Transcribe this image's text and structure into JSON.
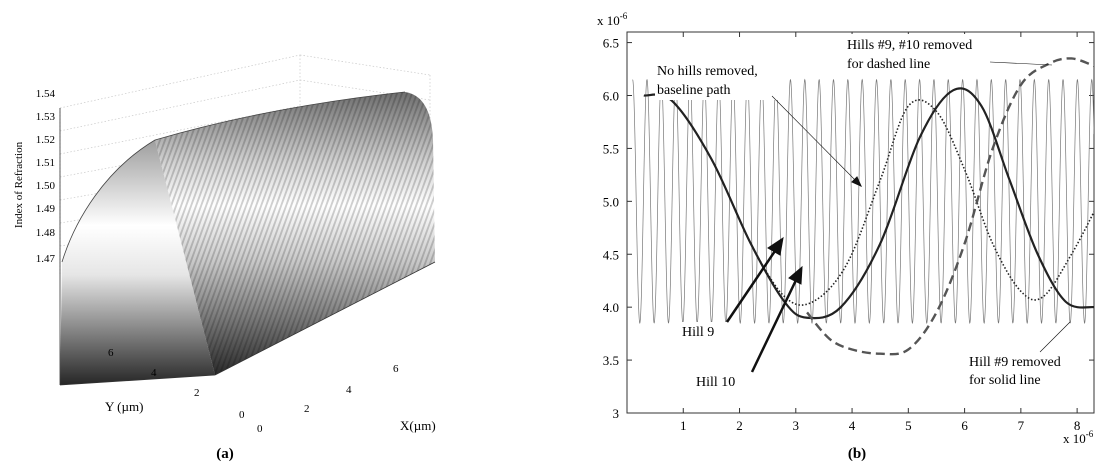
{
  "figure_a": {
    "panel_label": "(a)",
    "zlabel": "Index of Refraction",
    "ylabel": "Y (µm)",
    "xlabel": "X(µm)",
    "z_ticks": [
      "1.47",
      "1.48",
      "1.49",
      "1.50",
      "1.51",
      "1.52",
      "1.53",
      "1.54"
    ],
    "y_ticks": [
      "0",
      "2",
      "4",
      "6"
    ],
    "x_ticks": [
      "0",
      "2",
      "4",
      "6"
    ]
  },
  "figure_b": {
    "panel_label": "(b)",
    "y_multiplier": "x 10",
    "y_multiplier_exp": "-6",
    "x_multiplier": "x 10",
    "x_multiplier_exp": "-6",
    "annotations": {
      "no_hills_line1": "No hills removed,",
      "no_hills_line2": "baseline path",
      "hills_9_10_line1": "Hills #9, #10 removed",
      "hills_9_10_line2": "for dashed line",
      "hill9": "Hill 9",
      "hill10": "Hill 10",
      "hill9_removed_line1": "Hill #9 removed",
      "hill9_removed_line2": "for solid line"
    }
  },
  "chart_data": [
    {
      "type": "surface",
      "zlabel": "Index of Refraction",
      "xlabel": "X(µm)",
      "ylabel": "Y (µm)",
      "zlim": [
        1.47,
        1.54
      ],
      "xlim": [
        0,
        7
      ],
      "ylim": [
        0,
        7
      ],
      "z_ticks": [
        1.47,
        1.48,
        1.49,
        1.5,
        1.51,
        1.52,
        1.53,
        1.54
      ]
    },
    {
      "type": "line",
      "xlim": [
        0,
        8.3
      ],
      "ylim": [
        3,
        6.6
      ],
      "x_ticks": [
        1,
        2,
        3,
        4,
        5,
        6,
        7,
        8
      ],
      "y_ticks": [
        3,
        3.5,
        4,
        4.5,
        5,
        5.5,
        6,
        6.5
      ],
      "x_scale": "x 10^-6",
      "y_scale": "x 10^-6",
      "series": [
        {
          "style": "thin-oscillation",
          "x": [
            0.1,
            8.3
          ],
          "period": 0.255,
          "min": 3.85,
          "max": 6.15
        },
        {
          "style": "solid",
          "x": [
            0.3,
            0.8,
            1.5,
            2.2,
            2.8,
            3.2,
            3.8,
            4.5,
            5.2,
            5.8,
            6.3,
            6.8,
            7.3,
            7.8,
            8.3
          ],
          "y": [
            6.0,
            5.95,
            5.4,
            4.6,
            4.05,
            3.9,
            4.0,
            4.6,
            5.6,
            6.05,
            5.9,
            5.2,
            4.5,
            4.05,
            4.0
          ]
        },
        {
          "style": "dotted",
          "x": [
            0.3,
            0.8,
            1.5,
            2.2,
            2.8,
            3.3,
            3.9,
            4.5,
            5.0,
            5.5,
            6.0,
            6.5,
            7.0,
            7.4,
            7.9,
            8.3
          ],
          "y": [
            6.0,
            5.95,
            5.4,
            4.6,
            4.1,
            4.05,
            4.4,
            5.2,
            5.9,
            5.85,
            5.3,
            4.6,
            4.15,
            4.1,
            4.5,
            4.9
          ]
        },
        {
          "style": "dashed",
          "x": [
            3.2,
            3.6,
            4.0,
            4.5,
            5.0,
            5.5,
            6.0,
            6.5,
            7.0,
            7.5,
            7.9,
            8.3
          ],
          "y": [
            3.95,
            3.7,
            3.6,
            3.56,
            3.6,
            3.95,
            4.6,
            5.5,
            6.1,
            6.3,
            6.35,
            6.28
          ]
        }
      ]
    }
  ]
}
